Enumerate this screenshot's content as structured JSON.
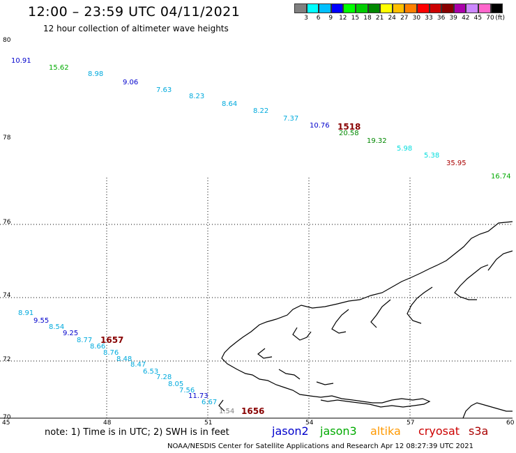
{
  "title": "12:00 – 23:59 UTC 04/11/2021",
  "subtitle": "12 hour collection of altimeter wave heights",
  "legend": {
    "unit": "(ft)",
    "items": [
      {
        "label": "3",
        "color": "#808080"
      },
      {
        "label": "6",
        "color": "#00ffff"
      },
      {
        "label": "9",
        "color": "#00bfff"
      },
      {
        "label": "12",
        "color": "#0000ff"
      },
      {
        "label": "15",
        "color": "#00ff00"
      },
      {
        "label": "18",
        "color": "#00cc00"
      },
      {
        "label": "21",
        "color": "#008800"
      },
      {
        "label": "24",
        "color": "#ffff00"
      },
      {
        "label": "27",
        "color": "#ffbf00"
      },
      {
        "label": "30",
        "color": "#ff8000"
      },
      {
        "label": "33",
        "color": "#ff0000"
      },
      {
        "label": "36",
        "color": "#cc0000"
      },
      {
        "label": "39",
        "color": "#880000"
      },
      {
        "label": "42",
        "color": "#aa00aa"
      },
      {
        "label": "45",
        "color": "#cc88ff"
      },
      {
        "label": "70",
        "color": "#ff66cc"
      },
      {
        "label": "",
        "color": "#000000"
      }
    ]
  },
  "axes": {
    "lat_labels": [
      "80",
      "78",
      "76",
      "74",
      "72",
      "70"
    ],
    "lon_labels": [
      "45",
      "48",
      "51",
      "54",
      "57",
      "60"
    ]
  },
  "track1": [
    {
      "text": "10.91",
      "color": "#0000cc"
    },
    {
      "text": "15.62",
      "color": "#00aa00"
    },
    {
      "text": "8.98",
      "color": "#00aadd"
    },
    {
      "text": "9.06",
      "color": "#0000cc"
    },
    {
      "text": "7.63",
      "color": "#00aadd"
    },
    {
      "text": "8.23",
      "color": "#00aadd"
    },
    {
      "text": "8.64",
      "color": "#00aadd"
    },
    {
      "text": "8.22",
      "color": "#00aadd"
    },
    {
      "text": "7.37",
      "color": "#00aadd"
    },
    {
      "text": "10.76",
      "color": "#0000cc"
    },
    {
      "text": "1518",
      "color": "#880000"
    },
    {
      "text": "20.58",
      "color": "#008800"
    },
    {
      "text": "19.32",
      "color": "#008800"
    },
    {
      "text": "5.98",
      "color": "#00dddd"
    },
    {
      "text": "5.38",
      "color": "#00dddd"
    },
    {
      "text": "35.95",
      "color": "#aa0000"
    },
    {
      "text": "16.74",
      "color": "#00aa00"
    }
  ],
  "track2": [
    {
      "text": "8.91",
      "color": "#00aadd"
    },
    {
      "text": "9.55",
      "color": "#0000cc"
    },
    {
      "text": "8.54",
      "color": "#00aadd"
    },
    {
      "text": "9.25",
      "color": "#0000cc"
    },
    {
      "text": "8.77",
      "color": "#00aadd"
    },
    {
      "text": "1657",
      "color": "#880000"
    },
    {
      "text": "8.66",
      "color": "#00aadd"
    },
    {
      "text": "8.76",
      "color": "#00aadd"
    },
    {
      "text": "8.48",
      "color": "#00aadd"
    },
    {
      "text": "8.47",
      "color": "#00aadd"
    },
    {
      "text": "6.53",
      "color": "#00aadd"
    },
    {
      "text": "7.28",
      "color": "#00aadd"
    },
    {
      "text": "8.05",
      "color": "#00aadd"
    },
    {
      "text": "7.56",
      "color": "#00aadd"
    },
    {
      "text": "11.73",
      "color": "#0000cc"
    },
    {
      "text": "6.67",
      "color": "#00aadd"
    },
    {
      "text": "1.54",
      "color": "#808080"
    },
    {
      "text": "1656",
      "color": "#880000"
    }
  ],
  "note": "note: 1) Time is in UTC; 2) SWH is in feet",
  "satellites": [
    {
      "name": "jason2",
      "color": "#0000cc"
    },
    {
      "name": "jason3",
      "color": "#00aa00"
    },
    {
      "name": "altika",
      "color": "#ff9900"
    },
    {
      "name": "cryosat",
      "color": "#cc0000"
    },
    {
      "name": "s3a",
      "color": "#aa0000"
    }
  ],
  "credit": "NOAA/NESDIS Center for Satellite Applications and Research    Apr 12 08:27:39 UTC 2021"
}
